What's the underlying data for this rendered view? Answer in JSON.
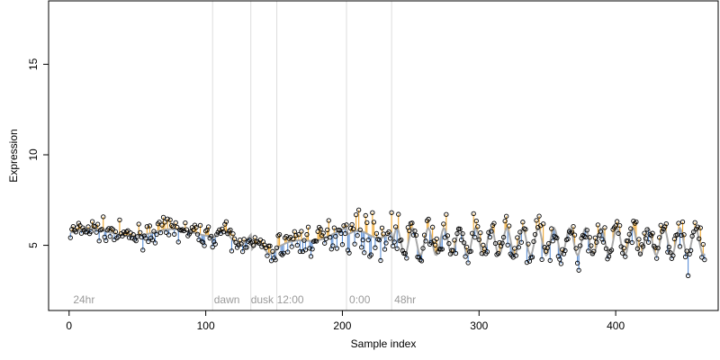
{
  "chart_data": {
    "type": "scatter",
    "title": "",
    "xlabel": "Sample index",
    "ylabel": "Expression",
    "xlim": [
      -15,
      475
    ],
    "ylim": [
      1.4,
      18.5
    ],
    "x_ticks": [
      0,
      100,
      200,
      300,
      400
    ],
    "y_ticks": [
      5,
      10,
      15
    ],
    "grid": false,
    "legend": "none",
    "colors": {
      "above": "#f0a830",
      "below": "#5b8fd6",
      "smooth": "#a9a9a9",
      "separator": "#dddddd",
      "region_label": "#9a9a9a",
      "point_edge": "#000000"
    },
    "regions": [
      {
        "label": "24hr",
        "x": 3
      },
      {
        "label": "dawn",
        "x": 106
      },
      {
        "label": "dusk",
        "x": 133
      },
      {
        "label": "12:00",
        "x": 152
      },
      {
        "label": "0:00",
        "x": 205
      },
      {
        "label": "48hr",
        "x": 238
      }
    ],
    "separators": [
      105,
      133,
      152,
      203,
      236
    ],
    "segments": [
      {
        "start": 1,
        "end": 105,
        "base": 5.7,
        "amp": 0.2,
        "period": 60,
        "noise": 0.55
      },
      {
        "start": 106,
        "end": 133,
        "base": 5.4,
        "amp": 0.4,
        "period": 25,
        "noise": 0.5
      },
      {
        "start": 134,
        "end": 152,
        "base": 4.8,
        "amp": 0.3,
        "period": 18,
        "noise": 0.6
      },
      {
        "start": 153,
        "end": 203,
        "base": 4.9,
        "amp": 0.15,
        "period": 40,
        "noise": 0.8,
        "slope": 0.018
      },
      {
        "start": 204,
        "end": 236,
        "base": 5.6,
        "amp": 0.2,
        "period": 30,
        "noise": 1.1
      },
      {
        "start": 237,
        "end": 465,
        "base": 5.2,
        "amp": 0.75,
        "period": 11.5,
        "noise": 0.9
      }
    ]
  }
}
